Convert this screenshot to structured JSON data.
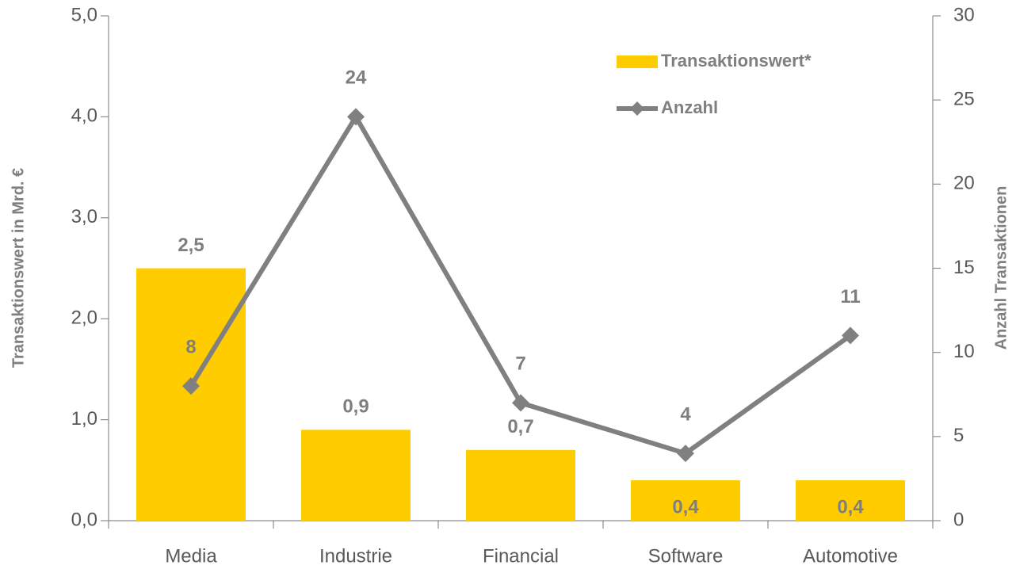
{
  "chart_data": {
    "type": "bar",
    "categories": [
      "Media",
      "Industrie",
      "Financial",
      "Software",
      "Automotive"
    ],
    "series": [
      {
        "name": "Transaktionswert*",
        "type": "bar",
        "color": "#ffcc00",
        "values": [
          2.5,
          0.9,
          0.7,
          0.4,
          0.4
        ],
        "value_labels": [
          "2,5",
          "0,9",
          "0,7",
          "0,4",
          "0,4"
        ]
      },
      {
        "name": "Anzahl",
        "type": "line",
        "axis": "y2",
        "color": "#808080",
        "values": [
          8,
          24,
          7,
          4,
          11
        ]
      }
    ],
    "ylabel": "Transaktionswert in Mrd. €",
    "y2label": "Anzahl Transaktionen",
    "ylim": [
      0,
      5
    ],
    "yticks": [
      {
        "value": 0,
        "label": "0,0"
      },
      {
        "value": 1,
        "label": "1,0"
      },
      {
        "value": 2,
        "label": "2,0"
      },
      {
        "value": 3,
        "label": "3,0"
      },
      {
        "value": 4,
        "label": "4,0"
      },
      {
        "value": 5,
        "label": "5,0"
      }
    ],
    "y2lim": [
      0,
      30
    ],
    "y2ticks": [
      0,
      5,
      10,
      15,
      20,
      25,
      30
    ],
    "legend": "upper right",
    "grid": false
  }
}
